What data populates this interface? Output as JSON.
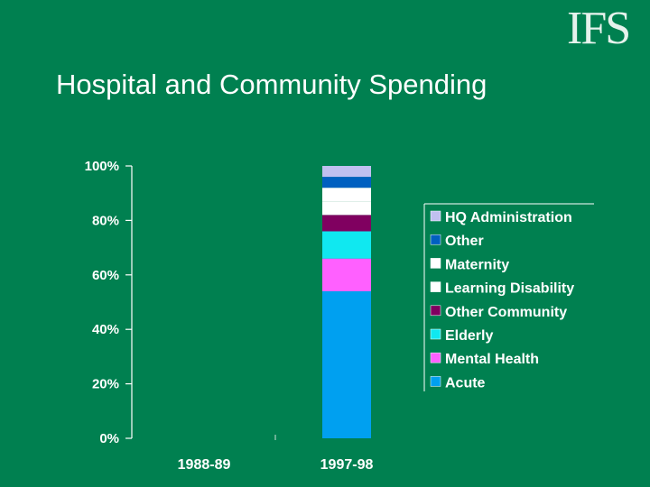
{
  "logo": "IFS",
  "title": "Hospital and Community Spending",
  "chart_data": {
    "type": "bar",
    "stacked": true,
    "categories": [
      "1988-89",
      "1997-98"
    ],
    "ylim": [
      0,
      100
    ],
    "yticks": [
      "0%",
      "20%",
      "40%",
      "60%",
      "80%",
      "100%"
    ],
    "legend_position": "right",
    "series": [
      {
        "name": "Acute",
        "color": "#00a0f0",
        "values": [
          0,
          54
        ]
      },
      {
        "name": "Mental Health",
        "color": "#ff60ff",
        "values": [
          0,
          12
        ]
      },
      {
        "name": "Elderly",
        "color": "#10e8f0",
        "values": [
          0,
          10
        ]
      },
      {
        "name": "Other Community",
        "color": "#800060",
        "values": [
          0,
          6
        ]
      },
      {
        "name": "Learning Disability",
        "color": "#ffffff",
        "values": [
          0,
          5
        ]
      },
      {
        "name": "Maternity",
        "color": "#ffffff",
        "values": [
          0,
          5
        ]
      },
      {
        "name": "Other",
        "color": "#0060c0",
        "values": [
          0,
          4
        ]
      },
      {
        "name": "HQ Administration",
        "color": "#c0c0f0",
        "values": [
          0,
          4
        ]
      }
    ]
  }
}
